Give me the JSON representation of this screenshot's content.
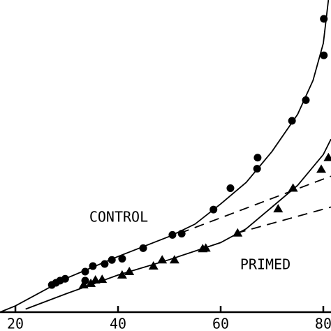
{
  "chart_data": {
    "type": "scatter",
    "annotations": [
      "CONTROL",
      "PRIMED"
    ],
    "xlim": [
      17,
      81.5
    ],
    "ylim": [
      -1,
      100
    ],
    "xticks": [
      20,
      40,
      60,
      80
    ],
    "series": [
      {
        "name": "CONTROL",
        "marker": "circle",
        "color": "#000",
        "x": [
          27.1,
          27.9,
          28.7,
          29.7,
          33.6,
          33.6,
          35.1,
          37.4,
          38.8,
          40.8,
          44.9,
          50.6,
          52.4,
          58.6,
          61.9,
          67.1,
          67.2,
          73.9,
          76.6,
          80.1,
          80.1
        ],
        "values": [
          7.8,
          8.5,
          9.2,
          9.8,
          12.1,
          9.2,
          13.9,
          14.6,
          15.9,
          16.3,
          19.7,
          24.0,
          24.4,
          32.2,
          39.1,
          45.4,
          49.0,
          60.9,
          67.6,
          82.1,
          93.9
        ]
      },
      {
        "name": "PRIMED",
        "marker": "triangle",
        "color": "#000",
        "x": [
          33.3,
          34.7,
          35.6,
          36.9,
          40.8,
          42.2,
          46.9,
          48.6,
          51.0,
          56.5,
          57.1,
          63.3,
          71.2,
          74.1,
          79.6,
          81.0
        ],
        "values": [
          7.8,
          8.3,
          9.4,
          9.6,
          11.0,
          12.1,
          13.9,
          15.9,
          15.9,
          19.5,
          19.7,
          24.6,
          32.4,
          39.1,
          45.2,
          49.0
        ]
      }
    ],
    "curves": [
      {
        "style": "solid",
        "x": [
          17,
          20,
          30,
          40,
          50,
          55,
          60,
          65,
          70,
          75,
          78,
          80,
          81
        ],
        "values": [
          -1,
          1,
          10,
          17,
          23.5,
          27.5,
          34,
          41,
          51,
          63,
          74,
          86,
          100
        ]
      },
      {
        "style": "dashed",
        "x": [
          52,
          81.5
        ],
        "values": [
          24.5,
          43
        ]
      },
      {
        "style": "solid",
        "x": [
          22,
          30,
          40,
          50,
          60,
          65,
          70,
          75,
          80,
          81.5
        ],
        "values": [
          0,
          5,
          11,
          16,
          21.5,
          26,
          33,
          40,
          50,
          55
        ]
      },
      {
        "style": "dashed",
        "x": [
          63,
          81.5
        ],
        "values": [
          24.5,
          33
        ]
      }
    ]
  }
}
